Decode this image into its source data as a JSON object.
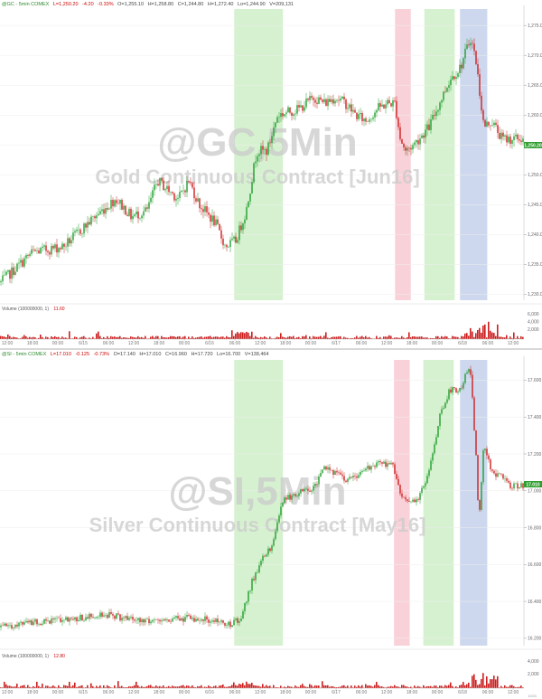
{
  "chart_data": [
    {
      "type": "candlestick",
      "panel": "gold",
      "header": {
        "symbol": "@GC - 5min COMEX",
        "last": "L=1,250.20",
        "change": "-4.20",
        "change_pct": "-0.33%",
        "open": "O=1,255.10",
        "high": "H=1,258.80",
        "close": "C=1,244.80",
        "hi2": "H=1,272.40",
        "lo2": "Lo=1,244.90",
        "vol": "V=209,131"
      },
      "watermark_symbol": "@GC,5Min",
      "watermark_name": "Gold Continuous Contract [Jun16]",
      "price_tag": "1,250.20",
      "volume_label": "Volume (100000000, 1)",
      "volume_value": "11.60",
      "y_ticks": [
        "1,275.00",
        "1,270.00",
        "1,265.00",
        "1,260.00",
        "1,255.00",
        "1,250.00",
        "1,245.00",
        "1,240.00",
        "1,235.00",
        "1,230.00"
      ],
      "volume_ticks": [
        "6,000",
        "4,000",
        "2,000"
      ],
      "highlight_bands": [
        {
          "color": "#c8ecc0",
          "x0": 0.447,
          "x1": 0.54
        },
        {
          "color": "#f7c3cc",
          "x0": 0.754,
          "x1": 0.784
        },
        {
          "color": "#c8ecc0",
          "x0": 0.81,
          "x1": 0.868
        },
        {
          "color": "#bccbe8",
          "x0": 0.878,
          "x1": 0.93
        }
      ],
      "x_ticks": [
        "12:00",
        "18:00",
        "00:00",
        "6/15",
        "06:00",
        "12:00",
        "18:00",
        "00:00",
        "6/16",
        "06:00",
        "12:00",
        "18:00",
        "00:00",
        "6/17",
        "06:00",
        "12:00",
        "18:00",
        "00:00",
        "6/18",
        "06:00",
        "12:00"
      ],
      "profile": [
        [
          0,
          1232
        ],
        [
          0.06,
          1237
        ],
        [
          0.12,
          1238
        ],
        [
          0.18,
          1243
        ],
        [
          0.22,
          1246
        ],
        [
          0.25,
          1243
        ],
        [
          0.28,
          1244
        ],
        [
          0.3,
          1249
        ],
        [
          0.34,
          1246
        ],
        [
          0.36,
          1249
        ],
        [
          0.38,
          1245
        ],
        [
          0.41,
          1242
        ],
        [
          0.43,
          1238
        ],
        [
          0.45,
          1239
        ],
        [
          0.47,
          1244
        ],
        [
          0.49,
          1254
        ],
        [
          0.51,
          1254
        ],
        [
          0.53,
          1260
        ],
        [
          0.57,
          1261
        ],
        [
          0.6,
          1263
        ],
        [
          0.62,
          1262
        ],
        [
          0.64,
          1263
        ],
        [
          0.66,
          1262
        ],
        [
          0.68,
          1260
        ],
        [
          0.7,
          1259
        ],
        [
          0.72,
          1261
        ],
        [
          0.74,
          1262
        ],
        [
          0.755,
          1262
        ],
        [
          0.765,
          1256
        ],
        [
          0.775,
          1254
        ],
        [
          0.79,
          1255
        ],
        [
          0.82,
          1258
        ],
        [
          0.84,
          1262
        ],
        [
          0.86,
          1266
        ],
        [
          0.88,
          1268
        ],
        [
          0.9,
          1273
        ],
        [
          0.91,
          1269
        ],
        [
          0.925,
          1258
        ],
        [
          0.94,
          1259
        ],
        [
          0.96,
          1256
        ],
        [
          0.975,
          1256
        ]
      ]
    },
    {
      "type": "candlestick",
      "panel": "silver",
      "header": {
        "symbol": "@SI - 5min COMEX",
        "last": "L=17.010",
        "change": "-0.125",
        "change_pct": "-0.73%",
        "open": "O=17.140",
        "high": "H=17.010",
        "close": "C=16.960",
        "hi2": "H=17.720",
        "lo2": "Lo=16.700",
        "vol": "V=138,464"
      },
      "watermark_symbol": "@SI,5Min",
      "watermark_name": "Silver Continuous Contract [May16]",
      "price_tag": "17.010",
      "volume_label": "Volume (100000000, 1)",
      "volume_value": "12.80",
      "y_ticks": [
        "17.600",
        "17.400",
        "17.200",
        "17.000",
        "16.800",
        "16.600",
        "16.400",
        "16.200"
      ],
      "volume_ticks": [
        "4,000",
        "2,000"
      ],
      "highlight_bands": [
        {
          "color": "#c8ecc0",
          "x0": 0.447,
          "x1": 0.54
        },
        {
          "color": "#f7c3cc",
          "x0": 0.752,
          "x1": 0.782
        },
        {
          "color": "#c8ecc0",
          "x0": 0.808,
          "x1": 0.866
        },
        {
          "color": "#bccbe8",
          "x0": 0.878,
          "x1": 0.93
        }
      ],
      "x_ticks": [
        "12:00",
        "18:00",
        "00:00",
        "6/15",
        "06:00",
        "12:00",
        "18:00",
        "00:00",
        "6/16",
        "06:00",
        "12:00",
        "18:00",
        "00:00",
        "6/17",
        "06:00",
        "12:00",
        "18:00",
        "00:00",
        "6/18",
        "06:00",
        "12:00"
      ],
      "profile": [
        [
          0,
          16.26
        ],
        [
          0.05,
          16.28
        ],
        [
          0.1,
          16.3
        ],
        [
          0.15,
          16.31
        ],
        [
          0.2,
          16.33
        ],
        [
          0.25,
          16.3
        ],
        [
          0.28,
          16.29
        ],
        [
          0.32,
          16.3
        ],
        [
          0.36,
          16.31
        ],
        [
          0.4,
          16.3
        ],
        [
          0.44,
          16.28
        ],
        [
          0.46,
          16.31
        ],
        [
          0.48,
          16.5
        ],
        [
          0.5,
          16.63
        ],
        [
          0.52,
          16.7
        ],
        [
          0.54,
          16.95
        ],
        [
          0.58,
          17.0
        ],
        [
          0.6,
          17.02
        ],
        [
          0.62,
          17.13
        ],
        [
          0.64,
          17.1
        ],
        [
          0.66,
          17.05
        ],
        [
          0.7,
          17.12
        ],
        [
          0.73,
          17.15
        ],
        [
          0.75,
          17.14
        ],
        [
          0.765,
          16.98
        ],
        [
          0.785,
          16.95
        ],
        [
          0.8,
          16.96
        ],
        [
          0.82,
          17.1
        ],
        [
          0.84,
          17.4
        ],
        [
          0.86,
          17.55
        ],
        [
          0.88,
          17.55
        ],
        [
          0.895,
          17.68
        ],
        [
          0.9,
          17.62
        ],
        [
          0.91,
          17.2
        ],
        [
          0.915,
          16.83
        ],
        [
          0.925,
          17.25
        ],
        [
          0.94,
          17.1
        ],
        [
          0.96,
          17.07
        ],
        [
          0.975,
          17.03
        ]
      ]
    }
  ],
  "footer_tag": "DOG"
}
